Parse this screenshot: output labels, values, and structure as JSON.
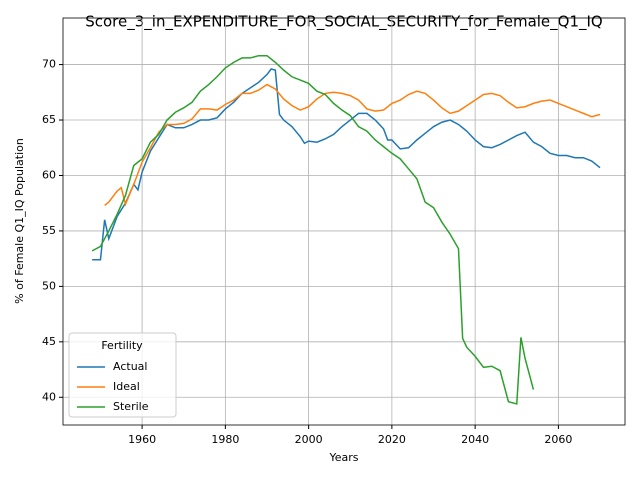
{
  "chart_data": {
    "type": "line",
    "title": "Score_3_in_EXPENDITURE_FOR_SOCIAL_SECURITY_for_Female_Q1_IQ",
    "xlabel": "Years",
    "ylabel": "% of Female Q1_IQ Population",
    "legend_title": "Fertility",
    "legend": "lower left",
    "grid": true,
    "xlim": [
      1941,
      2076
    ],
    "ylim": [
      37.5,
      74.2
    ],
    "xticks": [
      1960,
      1980,
      2000,
      2020,
      2040,
      2060
    ],
    "yticks": [
      40,
      45,
      50,
      55,
      60,
      65,
      70
    ],
    "series": [
      {
        "name": "Actual",
        "color": "#1f77b4",
        "x": [
          1948,
          1950,
          1951,
          1952,
          1954,
          1956,
          1958,
          1959,
          1960,
          1962,
          1964,
          1966,
          1968,
          1970,
          1972,
          1974,
          1976,
          1978,
          1980,
          1982,
          1984,
          1986,
          1988,
          1990,
          1991,
          1992,
          1993,
          1994,
          1996,
          1998,
          1999,
          2000,
          2002,
          2004,
          2006,
          2008,
          2010,
          2012,
          2014,
          2016,
          2018,
          2019,
          2020,
          2022,
          2024,
          2026,
          2028,
          2030,
          2032,
          2034,
          2036,
          2038,
          2040,
          2042,
          2044,
          2046,
          2048,
          2050,
          2052,
          2054,
          2056,
          2058,
          2060,
          2062,
          2064,
          2066,
          2068,
          2070
        ],
        "values": [
          52.4,
          52.4,
          56,
          54.3,
          56.3,
          57.5,
          59.2,
          58.7,
          60.3,
          62.2,
          63.4,
          64.6,
          64.3,
          64.3,
          64.6,
          65.0,
          65.0,
          65.2,
          66.0,
          66.6,
          67.4,
          67.9,
          68.4,
          69.1,
          69.6,
          69.5,
          65.5,
          65.0,
          64.4,
          63.5,
          62.9,
          63.1,
          63.0,
          63.3,
          63.7,
          64.4,
          65.0,
          65.6,
          65.6,
          65.0,
          64.2,
          63.2,
          63.2,
          62.4,
          62.5,
          63.2,
          63.8,
          64.4,
          64.8,
          65.0,
          64.6,
          64.0,
          63.2,
          62.6,
          62.5,
          62.8,
          63.2,
          63.6,
          63.9,
          63.0,
          62.6,
          62.0,
          61.8,
          61.8,
          61.6,
          61.6,
          61.3,
          60.7
        ]
      },
      {
        "name": "Ideal",
        "color": "#ff7f0e",
        "x": [
          1951,
          1952,
          1954,
          1955,
          1956,
          1958,
          1960,
          1962,
          1964,
          1966,
          1968,
          1970,
          1972,
          1974,
          1976,
          1978,
          1980,
          1982,
          1984,
          1986,
          1988,
          1990,
          1992,
          1994,
          1996,
          1998,
          2000,
          2002,
          2004,
          2006,
          2008,
          2010,
          2012,
          2014,
          2016,
          2018,
          2020,
          2022,
          2024,
          2026,
          2028,
          2030,
          2032,
          2034,
          2036,
          2038,
          2040,
          2042,
          2044,
          2046,
          2048,
          2050,
          2052,
          2054,
          2056,
          2058,
          2060,
          2062,
          2064,
          2066,
          2068,
          2070
        ],
        "values": [
          57.3,
          57.6,
          58.6,
          58.9,
          57.4,
          59.2,
          61.2,
          62.5,
          63.9,
          64.6,
          64.6,
          64.7,
          65.1,
          66.0,
          66.0,
          65.9,
          66.4,
          66.8,
          67.4,
          67.4,
          67.7,
          68.2,
          67.8,
          66.9,
          66.3,
          65.9,
          66.2,
          66.9,
          67.4,
          67.5,
          67.4,
          67.2,
          66.8,
          66.0,
          65.8,
          65.9,
          66.5,
          66.8,
          67.3,
          67.6,
          67.4,
          66.8,
          66.1,
          65.6,
          65.8,
          66.3,
          66.8,
          67.3,
          67.4,
          67.2,
          66.6,
          66.1,
          66.2,
          66.5,
          66.7,
          66.8,
          66.5,
          66.2,
          65.9,
          65.6,
          65.3,
          65.5
        ]
      },
      {
        "name": "Sterile",
        "color": "#2ca02c",
        "x": [
          1948,
          1950,
          1952,
          1954,
          1956,
          1958,
          1960,
          1962,
          1964,
          1966,
          1968,
          1970,
          1972,
          1974,
          1976,
          1978,
          1980,
          1982,
          1984,
          1986,
          1988,
          1990,
          1992,
          1994,
          1996,
          1998,
          2000,
          2002,
          2004,
          2006,
          2008,
          2010,
          2012,
          2014,
          2016,
          2018,
          2020,
          2022,
          2024,
          2026,
          2028,
          2030,
          2032,
          2034,
          2036,
          2037,
          2038,
          2040,
          2042,
          2044,
          2046,
          2048,
          2050,
          2051,
          2052,
          2054
        ],
        "values": [
          53.2,
          53.6,
          55.0,
          56.5,
          58.2,
          60.9,
          61.5,
          63.0,
          63.7,
          65.0,
          65.7,
          66.1,
          66.6,
          67.6,
          68.2,
          68.9,
          69.7,
          70.2,
          70.6,
          70.6,
          70.8,
          70.8,
          70.2,
          69.5,
          68.9,
          68.6,
          68.3,
          67.6,
          67.3,
          66.5,
          65.9,
          65.4,
          64.4,
          64.0,
          63.2,
          62.6,
          62.0,
          61.5,
          60.6,
          59.7,
          57.6,
          57.1,
          55.8,
          54.7,
          53.4,
          45.3,
          44.5,
          43.7,
          42.7,
          42.8,
          42.4,
          39.6,
          39.4,
          45.4,
          43.5,
          40.7
        ]
      }
    ]
  }
}
